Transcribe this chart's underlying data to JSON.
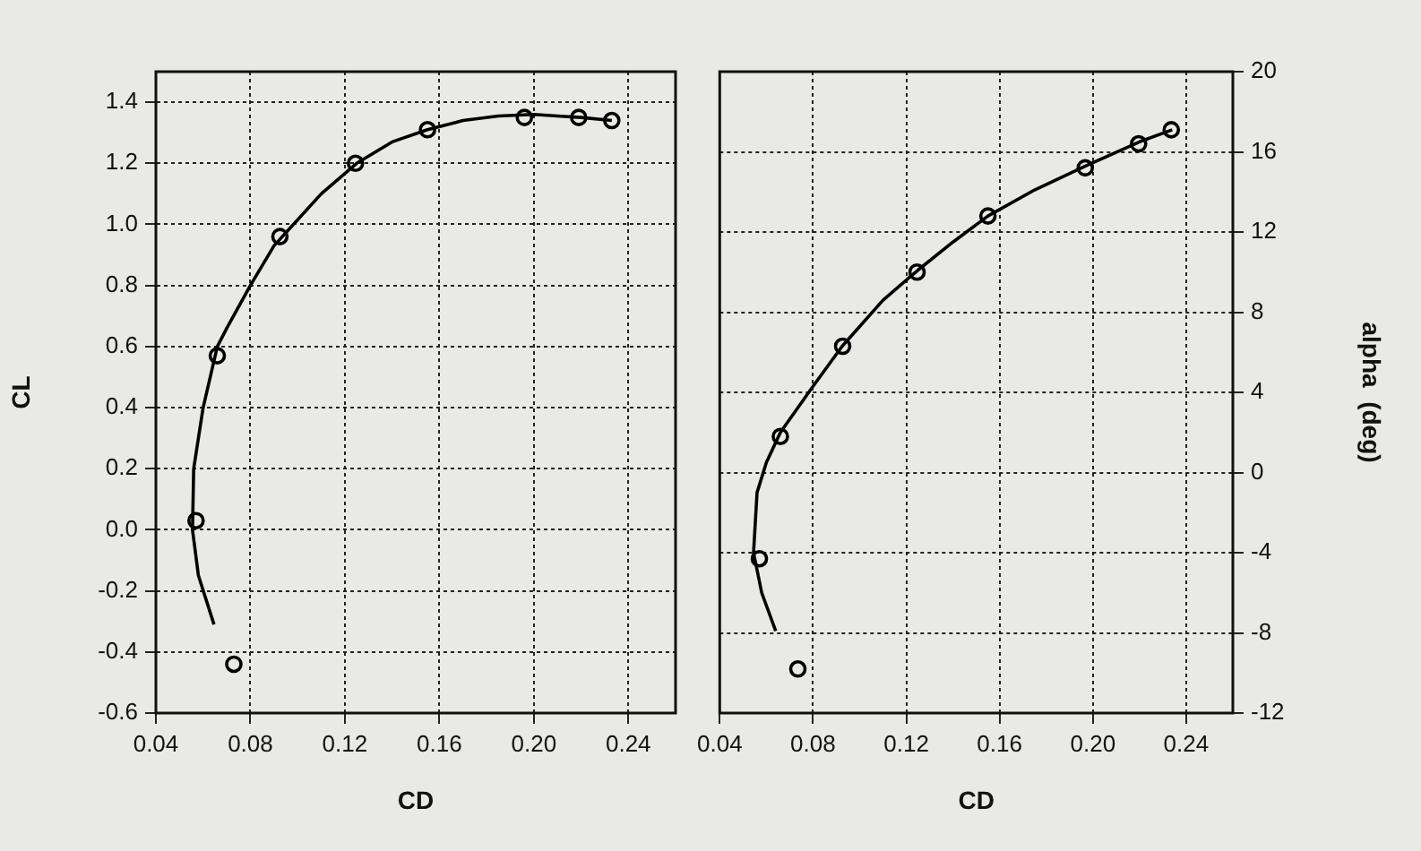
{
  "chart_data": [
    {
      "type": "scatter",
      "xlabel": "CD",
      "ylabel": "CL",
      "xlim": [
        0.04,
        0.26
      ],
      "xticks": [
        {
          "value": 0.04,
          "label": "0.04"
        },
        {
          "value": 0.08,
          "label": "0.08"
        },
        {
          "value": 0.12,
          "label": "0.12"
        },
        {
          "value": 0.16,
          "label": "0.16"
        },
        {
          "value": 0.2,
          "label": "0.20"
        },
        {
          "value": 0.24,
          "label": "0.24"
        }
      ],
      "ylim": [
        -0.6,
        1.5
      ],
      "yticks": [
        {
          "value": -0.6,
          "label": "-0.6"
        },
        {
          "value": -0.4,
          "label": "-0.4"
        },
        {
          "value": -0.2,
          "label": "-0.2"
        },
        {
          "value": 0,
          "label": "0.0"
        },
        {
          "value": 0.2,
          "label": "0.2"
        },
        {
          "value": 0.4,
          "label": "0.4"
        },
        {
          "value": 0.6,
          "label": "0.6"
        },
        {
          "value": 0.8,
          "label": "0.8"
        },
        {
          "value": 1,
          "label": "1.0"
        },
        {
          "value": 1.2,
          "label": "1.2"
        },
        {
          "value": 1.4,
          "label": "1.4"
        }
      ],
      "grid": true,
      "legend": false,
      "series": [
        {
          "marker": "circle",
          "color": "#000000",
          "x": [
            0.057,
            0.066,
            0.073,
            0.0925,
            0.1245,
            0.155,
            0.196,
            0.219,
            0.233
          ],
          "values": [
            0.03,
            0.57,
            -0.44,
            0.96,
            1.2,
            1.31,
            1.35,
            1.35,
            1.34
          ]
        },
        {
          "type": "line",
          "marker": "none",
          "line_style": "solid",
          "color": "#000000",
          "x": [
            0.0646,
            0.058,
            0.0555,
            0.056,
            0.06,
            0.066,
            0.07,
            0.08,
            0.09,
            0.11,
            0.125,
            0.14,
            0.155,
            0.17,
            0.185,
            0.2,
            0.21,
            0.22,
            0.233
          ],
          "values": [
            -0.31,
            -0.15,
            0.0,
            0.2,
            0.4,
            0.6,
            0.66,
            0.8,
            0.93,
            1.1,
            1.2,
            1.27,
            1.31,
            1.34,
            1.355,
            1.36,
            1.355,
            1.35,
            1.34
          ]
        }
      ]
    },
    {
      "type": "scatter",
      "xlabel": "CD",
      "y2label": "alpha  (deg)",
      "xlim": [
        0.04,
        0.26
      ],
      "xticks": [
        {
          "value": 0.04,
          "label": "0.04"
        },
        {
          "value": 0.08,
          "label": "0.08"
        },
        {
          "value": 0.12,
          "label": "0.12"
        },
        {
          "value": 0.16,
          "label": "0.16"
        },
        {
          "value": 0.2,
          "label": "0.20"
        },
        {
          "value": 0.24,
          "label": "0.24"
        }
      ],
      "y2lim": [
        -12,
        20
      ],
      "y2ticks": [
        -12,
        -8,
        -4,
        0,
        4,
        8,
        12,
        16,
        20
      ],
      "grid": true,
      "legend": false,
      "series": [
        {
          "axis": "y2",
          "marker": "circle",
          "color": "#000000",
          "x": [
            0.057,
            0.066,
            0.0735,
            0.0927,
            0.1246,
            0.155,
            0.1967,
            0.2196,
            0.2336
          ],
          "values": [
            -4.3,
            1.8,
            -9.8,
            6.3,
            10.0,
            12.8,
            15.2,
            16.4,
            17.1
          ]
        },
        {
          "type": "line",
          "axis": "y2",
          "marker": "none",
          "line_style": "solid",
          "color": "#000000",
          "x": [
            0.064,
            0.058,
            0.0545,
            0.056,
            0.06,
            0.066,
            0.08,
            0.0925,
            0.11,
            0.125,
            0.14,
            0.155,
            0.175,
            0.197,
            0.22,
            0.234
          ],
          "values": [
            -7.9,
            -6,
            -4,
            -1,
            0.5,
            2,
            4.3,
            6.3,
            8.6,
            10.1,
            11.5,
            12.8,
            14.1,
            15.3,
            16.5,
            17.1
          ]
        }
      ]
    }
  ]
}
